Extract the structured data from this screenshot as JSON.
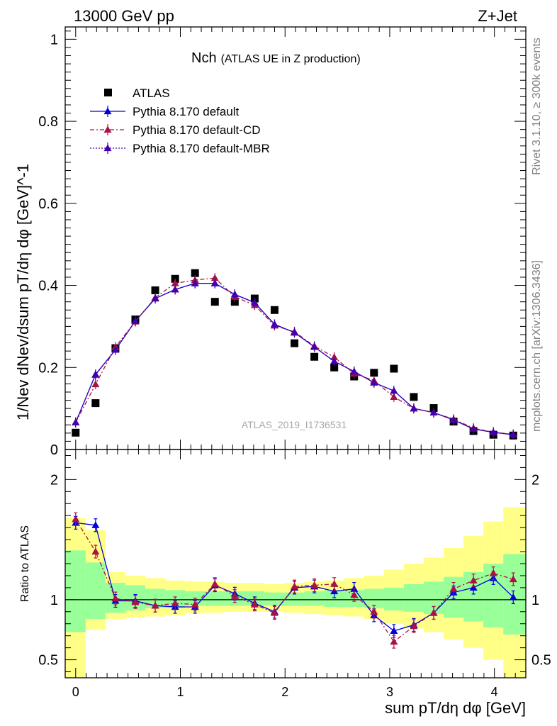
{
  "header": {
    "left": "13000 GeV pp",
    "right": "Z+Jet",
    "side_top": "Rivet 3.1.10, ≥ 300k events",
    "side_bottom": "mcplots.cern.ch [arXiv:1306.3436]",
    "watermark": "ATLAS_2019_I1736531"
  },
  "chart_data": {
    "type": "scatter",
    "title": "Nch",
    "subtitle": "(ATLAS UE in Z production)",
    "xlabel": "sum pT/dη dφ [GeV]",
    "ylabel": "1/Nev dNev/dsum pT/dη dφ [GeV]^-1",
    "ratio_ylabel": "Ratio to ATLAS",
    "xlim": [
      -0.1,
      4.3
    ],
    "ylim": [
      0,
      1.03
    ],
    "ratio_ylim": [
      0.35,
      2.25
    ],
    "x_ticks": [
      "0",
      "1",
      "2",
      "3",
      "4"
    ],
    "y_ticks": [
      "0",
      "0.2",
      "0.4",
      "0.6",
      "0.8",
      "1"
    ],
    "ratio_ticks": [
      "0.5",
      "1",
      "2"
    ],
    "x": [
      0.0,
      0.19,
      0.38,
      0.57,
      0.76,
      0.95,
      1.14,
      1.33,
      1.52,
      1.71,
      1.9,
      2.09,
      2.28,
      2.47,
      2.66,
      2.85,
      3.04,
      3.23,
      3.42,
      3.61,
      3.8,
      3.99,
      4.18
    ],
    "legend": [
      {
        "name": "ATLAS"
      },
      {
        "name": "Pythia 8.170 default"
      },
      {
        "name": "Pythia 8.170 default-CD"
      },
      {
        "name": "Pythia 8.170 default-MBR"
      }
    ],
    "series": [
      {
        "name": "ATLAS",
        "color": "#000000",
        "values": [
          0.041,
          0.113,
          0.247,
          0.317,
          0.388,
          0.416,
          0.43,
          0.36,
          0.36,
          0.368,
          0.34,
          0.259,
          0.226,
          0.2,
          0.178,
          0.187,
          0.197,
          0.128,
          0.101,
          0.068,
          0.045,
          0.036,
          0.034
        ]
      },
      {
        "name": "Pythia 8.170 default",
        "color": "#0000dd",
        "values": [
          0.066,
          0.183,
          0.243,
          0.313,
          0.368,
          0.39,
          0.405,
          0.405,
          0.378,
          0.358,
          0.305,
          0.285,
          0.25,
          0.215,
          0.19,
          0.163,
          0.143,
          0.1,
          0.09,
          0.072,
          0.05,
          0.042,
          0.036
        ]
      },
      {
        "name": "Pythia 8.170 default-CD",
        "color": "#aa1144",
        "values": [
          0.066,
          0.159,
          0.25,
          0.312,
          0.37,
          0.405,
          0.413,
          0.418,
          0.372,
          0.352,
          0.302,
          0.287,
          0.252,
          0.225,
          0.185,
          0.168,
          0.128,
          0.1,
          0.09,
          0.074,
          0.052,
          0.042,
          0.037
        ]
      },
      {
        "name": "Pythia 8.170 default-MBR",
        "color": "#4400aa",
        "values": [
          0.066,
          0.182,
          0.243,
          0.313,
          0.368,
          0.39,
          0.405,
          0.405,
          0.378,
          0.358,
          0.305,
          0.285,
          0.25,
          0.215,
          0.19,
          0.163,
          0.143,
          0.1,
          0.09,
          0.072,
          0.05,
          0.042,
          0.036
        ]
      }
    ],
    "ratio_series": [
      {
        "name": "Pythia 8.170 default",
        "values": [
          1.64,
          1.62,
          0.99,
          0.99,
          0.95,
          0.94,
          0.94,
          1.12,
          1.05,
          0.97,
          0.9,
          1.1,
          1.11,
          1.07,
          1.09,
          0.87,
          0.74,
          0.79,
          0.89,
          1.06,
          1.1,
          1.18,
          1.02
        ]
      },
      {
        "name": "Pythia 8.170 default-CD",
        "values": [
          1.67,
          1.4,
          1.01,
          0.98,
          0.95,
          0.97,
          0.96,
          1.13,
          1.03,
          0.96,
          0.89,
          1.11,
          1.12,
          1.13,
          1.04,
          0.9,
          0.65,
          0.78,
          0.89,
          1.09,
          1.16,
          1.22,
          1.17
        ]
      }
    ],
    "error_bands": {
      "x_edges": [
        -0.1,
        0.095,
        0.285,
        0.475,
        0.665,
        0.855,
        1.045,
        1.235,
        1.425,
        1.615,
        1.805,
        1.995,
        2.185,
        2.375,
        2.565,
        2.755,
        2.945,
        3.135,
        3.325,
        3.515,
        3.705,
        3.895,
        4.085,
        4.3
      ],
      "green": [
        [
          0.73,
          1.41
        ],
        [
          0.84,
          1.31
        ],
        [
          0.89,
          1.14
        ],
        [
          0.91,
          1.12
        ],
        [
          0.93,
          1.09
        ],
        [
          0.93,
          1.08
        ],
        [
          0.95,
          1.07
        ],
        [
          0.95,
          1.07
        ],
        [
          0.95,
          1.07
        ],
        [
          0.95,
          1.07
        ],
        [
          0.95,
          1.06
        ],
        [
          0.95,
          1.06
        ],
        [
          0.95,
          1.07
        ],
        [
          0.94,
          1.08
        ],
        [
          0.94,
          1.08
        ],
        [
          0.93,
          1.09
        ],
        [
          0.91,
          1.1
        ],
        [
          0.9,
          1.13
        ],
        [
          0.88,
          1.15
        ],
        [
          0.85,
          1.19
        ],
        [
          0.82,
          1.23
        ],
        [
          0.77,
          1.3
        ],
        [
          0.71,
          1.38
        ]
      ],
      "yellow": [
        [
          0.33,
          1.68
        ],
        [
          0.75,
          1.58
        ],
        [
          0.84,
          1.23
        ],
        [
          0.85,
          1.2
        ],
        [
          0.86,
          1.18
        ],
        [
          0.87,
          1.16
        ],
        [
          0.89,
          1.15
        ],
        [
          0.89,
          1.15
        ],
        [
          0.9,
          1.14
        ],
        [
          0.9,
          1.14
        ],
        [
          0.9,
          1.13
        ],
        [
          0.89,
          1.14
        ],
        [
          0.88,
          1.15
        ],
        [
          0.87,
          1.16
        ],
        [
          0.86,
          1.18
        ],
        [
          0.84,
          1.2
        ],
        [
          0.8,
          1.25
        ],
        [
          0.76,
          1.3
        ],
        [
          0.73,
          1.35
        ],
        [
          0.67,
          1.43
        ],
        [
          0.6,
          1.53
        ],
        [
          0.5,
          1.65
        ],
        [
          0.35,
          1.77
        ]
      ]
    }
  }
}
